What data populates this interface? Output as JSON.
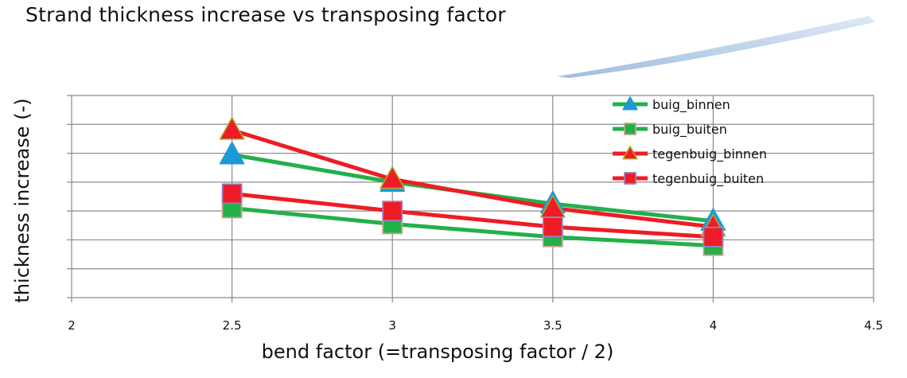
{
  "page": {
    "title": "Strand thickness increase vs transposing factor"
  },
  "chart_data": {
    "type": "line",
    "title": "Strand thickness increase vs transposing factor",
    "xlabel": "bend factor (=transposing factor / 2)",
    "ylabel": "thickness increase (-)",
    "xlim": [
      2,
      4.5
    ],
    "xticks": [
      2,
      2.5,
      3,
      3.5,
      4,
      4.5
    ],
    "ylim": [
      0,
      7
    ],
    "y_gridlines": 7,
    "y_tick_labels_shown": false,
    "grid": true,
    "legend_position": "top-right",
    "x": [
      2.5,
      3,
      3.5,
      4
    ],
    "series": [
      {
        "name": "buig_binnen",
        "line_color": "#22b04b",
        "marker": "triangle",
        "marker_fill": "#1b9ad6",
        "marker_edge": "#1b9ad6",
        "values": [
          4.95,
          4.0,
          3.25,
          2.65
        ]
      },
      {
        "name": "buig_buiten",
        "line_color": "#22b04b",
        "marker": "square",
        "marker_fill": "#22b04b",
        "marker_edge": "#c9a28c",
        "values": [
          3.1,
          2.55,
          2.1,
          1.8
        ]
      },
      {
        "name": "tegenbuig_binnen",
        "line_color": "#ee1c24",
        "marker": "triangle",
        "marker_fill": "#ee1c24",
        "marker_edge": "#b5a42b",
        "values": [
          5.8,
          4.1,
          3.1,
          2.45
        ]
      },
      {
        "name": "tegenbuig_buiten",
        "line_color": "#ee1c24",
        "marker": "square",
        "marker_fill": "#ee1c24",
        "marker_edge": "#9b7fc2",
        "values": [
          3.6,
          3.0,
          2.45,
          2.1
        ]
      }
    ]
  }
}
